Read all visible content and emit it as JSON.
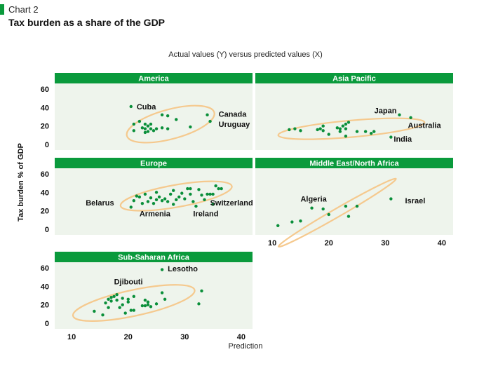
{
  "header": {
    "chart_number": "Chart 2",
    "title": "Tax burden as a share of the GDP"
  },
  "colors": {
    "accent": "#0a9a3c",
    "panel_bg": "#eef4ec",
    "ellipse": "#f5c98e",
    "points": "#0a8f3a"
  },
  "chart_data": {
    "type": "scatter",
    "subtitle": "Actual values (Y) versus predicted values (X)",
    "xlabel": "Prediction",
    "ylabel": "Tax burden % of GDP",
    "xlim": [
      7,
      42
    ],
    "ylim": [
      -6,
      66
    ],
    "xticks": [
      10,
      20,
      30,
      40
    ],
    "yticks": [
      0,
      20,
      40,
      60
    ],
    "grid": false,
    "panels": [
      {
        "title": "America",
        "points": [
          [
            20.5,
            41
          ],
          [
            21,
            22
          ],
          [
            21,
            15
          ],
          [
            22,
            25
          ],
          [
            22.5,
            18
          ],
          [
            23,
            13
          ],
          [
            23,
            17
          ],
          [
            23,
            22
          ],
          [
            23.5,
            20
          ],
          [
            23.5,
            14
          ],
          [
            24,
            17
          ],
          [
            24,
            22
          ],
          [
            24.5,
            15
          ],
          [
            25,
            17
          ],
          [
            26,
            32
          ],
          [
            26,
            18
          ],
          [
            27,
            31
          ],
          [
            27,
            17
          ],
          [
            28.5,
            27
          ],
          [
            31,
            19
          ],
          [
            34,
            32
          ],
          [
            34.5,
            25
          ]
        ],
        "ellipse": {
          "cx": 27.5,
          "cy": 22,
          "rx": 8,
          "ry": 16,
          "angle": -15
        },
        "labels": [
          {
            "text": "Cuba",
            "x": 21.5,
            "y": 41,
            "align": "start"
          },
          {
            "text": "Canada",
            "x": 36,
            "y": 33,
            "align": "start"
          },
          {
            "text": "Uruguay",
            "x": 36,
            "y": 22,
            "align": "start"
          }
        ]
      },
      {
        "title": "Asia Pacific",
        "points": [
          [
            13,
            16
          ],
          [
            14,
            17
          ],
          [
            15,
            15
          ],
          [
            18,
            16
          ],
          [
            18.5,
            17
          ],
          [
            19,
            20
          ],
          [
            19,
            15
          ],
          [
            20,
            11
          ],
          [
            21.5,
            18
          ],
          [
            22,
            14
          ],
          [
            22,
            17
          ],
          [
            22.5,
            20
          ],
          [
            23,
            22
          ],
          [
            23,
            17
          ],
          [
            23.5,
            24
          ],
          [
            23,
            9
          ],
          [
            25,
            14
          ],
          [
            26.5,
            14
          ],
          [
            27.5,
            12
          ],
          [
            28,
            14
          ],
          [
            31,
            8
          ],
          [
            32.5,
            32
          ],
          [
            34.5,
            29
          ]
        ],
        "ellipse": {
          "cx": 24,
          "cy": 17,
          "rx": 13,
          "ry": 9,
          "angle": -5
        },
        "labels": [
          {
            "text": "Japan",
            "x": 32,
            "y": 37,
            "align": "end"
          },
          {
            "text": "Australia",
            "x": 34,
            "y": 21,
            "align": "start"
          },
          {
            "text": "India",
            "x": 31.5,
            "y": 6,
            "align": "start"
          }
        ]
      },
      {
        "title": "Europe",
        "points": [
          [
            20.5,
            24
          ],
          [
            21,
            31
          ],
          [
            21.5,
            36
          ],
          [
            22,
            35
          ],
          [
            22.5,
            28
          ],
          [
            23,
            38
          ],
          [
            23.5,
            30
          ],
          [
            24,
            34
          ],
          [
            24.5,
            28
          ],
          [
            25,
            32
          ],
          [
            25,
            40
          ],
          [
            25.5,
            35
          ],
          [
            26,
            31
          ],
          [
            26.5,
            33
          ],
          [
            27,
            30
          ],
          [
            27.5,
            38
          ],
          [
            28,
            27
          ],
          [
            28,
            42
          ],
          [
            28.5,
            32
          ],
          [
            29,
            35
          ],
          [
            29.5,
            39
          ],
          [
            30,
            33
          ],
          [
            30.5,
            44
          ],
          [
            31,
            38
          ],
          [
            31,
            44
          ],
          [
            31.5,
            30
          ],
          [
            32,
            25
          ],
          [
            32.5,
            43
          ],
          [
            33,
            37
          ],
          [
            33.5,
            32
          ],
          [
            34,
            38
          ],
          [
            34.5,
            38
          ],
          [
            35,
            38
          ],
          [
            35,
            27
          ],
          [
            35.5,
            47
          ],
          [
            36,
            44
          ],
          [
            36.5,
            44
          ]
        ],
        "ellipse": {
          "cx": 28.5,
          "cy": 36,
          "rx": 10,
          "ry": 12,
          "angle": -10
        },
        "labels": [
          {
            "text": "Belarus",
            "x": 17.5,
            "y": 29,
            "align": "end"
          },
          {
            "text": "Armenia",
            "x": 22,
            "y": 17,
            "align": "start"
          },
          {
            "text": "Ireland",
            "x": 31.5,
            "y": 17,
            "align": "start"
          },
          {
            "text": "Switzerland",
            "x": 34.5,
            "y": 29,
            "align": "start"
          }
        ]
      },
      {
        "title": "Middle East/North Africa",
        "points": [
          [
            11,
            4
          ],
          [
            13.5,
            8
          ],
          [
            15,
            9
          ],
          [
            17,
            23
          ],
          [
            19,
            22
          ],
          [
            20,
            16
          ],
          [
            23,
            25
          ],
          [
            23.5,
            14
          ],
          [
            25,
            25
          ],
          [
            31,
            33
          ]
        ],
        "ellipse": {
          "cx": 21.5,
          "cy": 18,
          "rx": 12,
          "ry": 4.5,
          "angle": -30
        },
        "labels": [
          {
            "text": "Algeria",
            "x": 15,
            "y": 33,
            "align": "start"
          },
          {
            "text": "Israel",
            "x": 33.5,
            "y": 31,
            "align": "start"
          }
        ]
      },
      {
        "title": "Sub-Saharan Africa",
        "points": [
          [
            14,
            13
          ],
          [
            15.5,
            9
          ],
          [
            16,
            22
          ],
          [
            16.5,
            17
          ],
          [
            16.5,
            26
          ],
          [
            17,
            28
          ],
          [
            17,
            24
          ],
          [
            17.5,
            29
          ],
          [
            18,
            25
          ],
          [
            18,
            31
          ],
          [
            18.5,
            17
          ],
          [
            19,
            20
          ],
          [
            19,
            27
          ],
          [
            19.5,
            11
          ],
          [
            20,
            23
          ],
          [
            20,
            26
          ],
          [
            20.5,
            14
          ],
          [
            21,
            14
          ],
          [
            21,
            29
          ],
          [
            22.5,
            19
          ],
          [
            23,
            19
          ],
          [
            23,
            25
          ],
          [
            23.5,
            20
          ],
          [
            23.5,
            23
          ],
          [
            24,
            18
          ],
          [
            25,
            21
          ],
          [
            26,
            33
          ],
          [
            26.5,
            26
          ],
          [
            26,
            58
          ],
          [
            32.5,
            21
          ],
          [
            33,
            35
          ]
        ],
        "ellipse": {
          "cx": 21,
          "cy": 22,
          "rx": 11,
          "ry": 14,
          "angle": -12
        },
        "labels": [
          {
            "text": "Lesotho",
            "x": 27,
            "y": 59,
            "align": "start"
          },
          {
            "text": "Djibouti",
            "x": 17.5,
            "y": 45,
            "align": "start"
          }
        ]
      }
    ]
  }
}
